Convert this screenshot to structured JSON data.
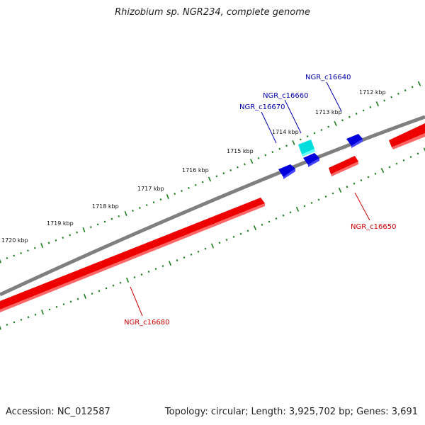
{
  "title": "Rhizobium sp. NGR234, complete genome",
  "accession_text": "Accession: NC_012587",
  "topology_text": "Topology: circular; Length: 3,925,702 bp; Genes: 3,691",
  "colors": {
    "backbone": "#7f7f7f",
    "forward_gene": "#0000dd",
    "reverse_gene": "#ee0000",
    "selected_gene": "#00dddd",
    "ticks": "#1e7d1e",
    "forward_label": "#0000aa",
    "reverse_label": "#cc0000",
    "tick_label": "#111111"
  },
  "tick_labels": [
    "1712 kbp",
    "1713 kbp",
    "1714 kbp",
    "1715 kbp",
    "1716 kbp",
    "1717 kbp",
    "1718 kbp",
    "1719 kbp",
    "1720 kbp"
  ],
  "genes_forward": [
    {
      "name": "NGR_c16640",
      "strand": "forward"
    },
    {
      "name": "NGR_c16660",
      "strand": "forward",
      "highlighted": true
    },
    {
      "name": "NGR_c16670",
      "strand": "forward"
    }
  ],
  "genes_reverse": [
    {
      "name": "NGR_c16650",
      "strand": "reverse"
    },
    {
      "name": "NGR_c16680",
      "strand": "reverse"
    }
  ]
}
